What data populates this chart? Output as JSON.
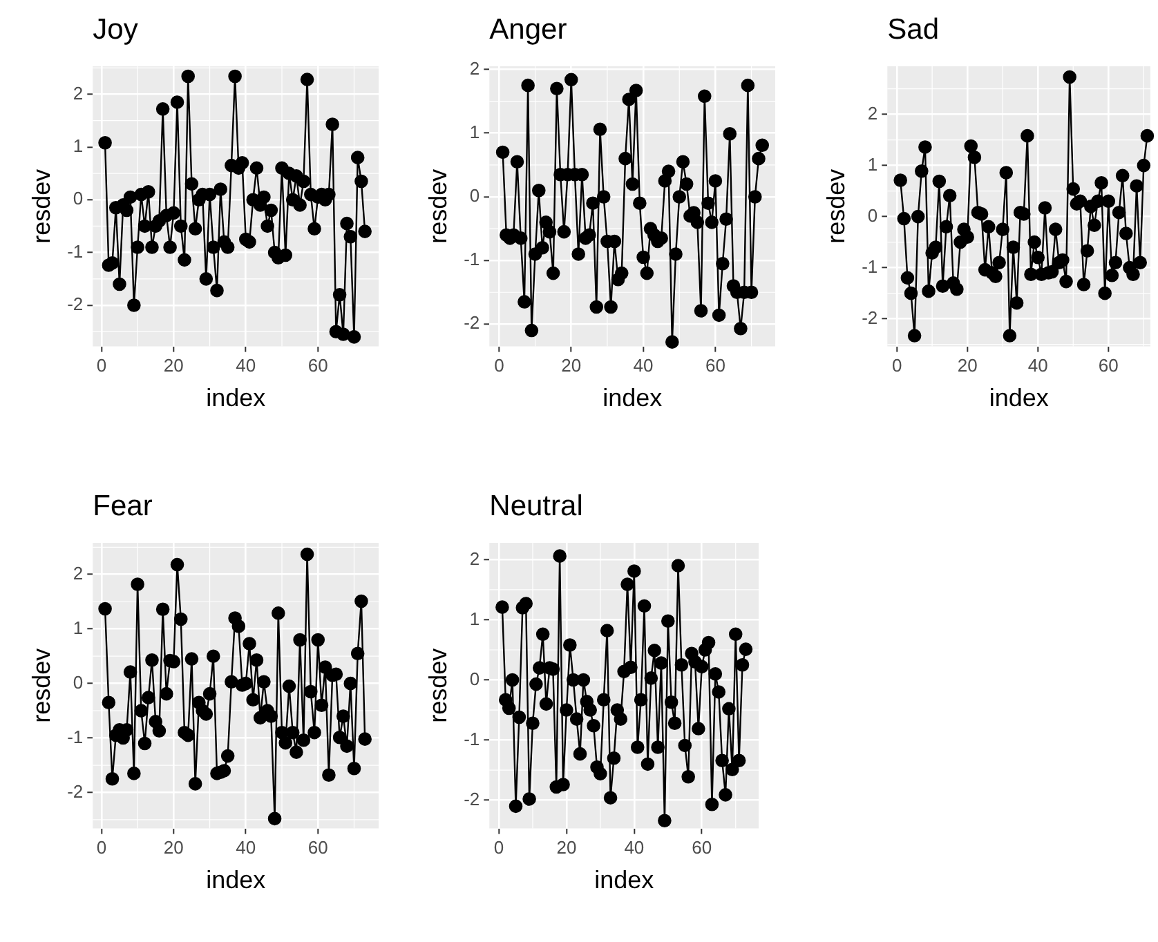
{
  "chart_data": [
    {
      "type": "line",
      "title": "Joy",
      "xlabel": "index",
      "ylabel": "resdev",
      "color": "#000000",
      "marker": "circle",
      "line_style": "solid",
      "grid": true,
      "xlim": [
        -2.4,
        76.8
      ],
      "ylim": [
        -2.78,
        2.53
      ],
      "xticks": [
        0,
        20,
        40,
        60
      ],
      "yticks": [
        -2,
        -1,
        0,
        1,
        2
      ],
      "x": [
        1,
        2,
        3,
        4,
        5,
        6,
        7,
        8,
        9,
        10,
        11,
        12,
        13,
        14,
        15,
        16,
        17,
        18,
        19,
        20,
        21,
        22,
        23,
        24,
        25,
        26,
        27,
        28,
        29,
        30,
        31,
        32,
        33,
        34,
        35,
        36,
        37,
        38,
        39,
        40,
        41,
        42,
        43,
        44,
        45,
        46,
        47,
        48,
        49,
        50,
        51,
        52,
        53,
        54,
        55,
        56,
        57,
        58,
        59,
        60,
        61,
        62,
        63,
        64,
        65,
        66,
        67,
        68,
        69,
        70,
        71,
        72,
        73
      ],
      "values": [
        1.08,
        -1.24,
        -1.2,
        -0.15,
        -1.6,
        -0.1,
        -0.2,
        0.05,
        -2.0,
        -0.9,
        0.1,
        -0.5,
        0.15,
        -0.9,
        -0.5,
        -0.4,
        1.72,
        -0.3,
        -0.9,
        -0.25,
        1.85,
        -0.5,
        -1.14,
        2.34,
        0.3,
        -0.55,
        0.0,
        0.1,
        -1.5,
        0.1,
        -0.9,
        -1.72,
        0.2,
        -0.8,
        -0.9,
        0.65,
        2.34,
        0.6,
        0.7,
        -0.75,
        -0.8,
        0.0,
        0.6,
        -0.1,
        0.05,
        -0.5,
        -0.2,
        -1.0,
        -1.1,
        0.6,
        -1.05,
        0.5,
        0.0,
        0.45,
        -0.1,
        0.35,
        2.28,
        0.1,
        -0.55,
        0.05,
        0.1,
        0.0,
        0.1,
        1.43,
        -2.5,
        -1.8,
        -2.55,
        -0.45,
        -0.7,
        -2.6,
        0.8,
        0.35,
        -0.6
      ]
    },
    {
      "type": "line",
      "title": "Anger",
      "xlabel": "index",
      "ylabel": "resdev",
      "color": "#000000",
      "marker": "circle",
      "line_style": "solid",
      "grid": true,
      "xlim": [
        -2.7,
        76.6
      ],
      "ylim": [
        -2.35,
        2.05
      ],
      "xticks": [
        0,
        20,
        40,
        60
      ],
      "yticks": [
        -2,
        -1,
        0,
        1,
        2
      ],
      "x": [
        1,
        2,
        3,
        4,
        5,
        6,
        7,
        8,
        9,
        10,
        11,
        12,
        13,
        14,
        15,
        16,
        17,
        18,
        19,
        20,
        21,
        22,
        23,
        24,
        25,
        26,
        27,
        28,
        29,
        30,
        31,
        32,
        33,
        34,
        35,
        36,
        37,
        38,
        39,
        40,
        41,
        42,
        43,
        44,
        45,
        46,
        47,
        48,
        49,
        50,
        51,
        52,
        53,
        54,
        55,
        56,
        57,
        58,
        59,
        60,
        61,
        62,
        63,
        64,
        65,
        66,
        67,
        68,
        69,
        70,
        71,
        72,
        73
      ],
      "values": [
        0.7,
        -0.6,
        -0.65,
        -0.6,
        0.55,
        -0.65,
        -1.65,
        1.75,
        -2.1,
        -0.9,
        0.1,
        -0.8,
        -0.4,
        -0.55,
        -1.2,
        1.7,
        0.35,
        -0.55,
        0.35,
        1.84,
        0.35,
        -0.9,
        0.35,
        -0.65,
        -0.6,
        -0.1,
        -1.73,
        1.06,
        0.0,
        -0.7,
        -1.73,
        -0.7,
        -1.3,
        -1.2,
        0.6,
        1.53,
        0.2,
        1.67,
        -0.1,
        -0.95,
        -1.2,
        -0.5,
        -0.6,
        -0.7,
        -0.65,
        0.25,
        0.4,
        -2.28,
        -0.9,
        0.0,
        0.55,
        0.2,
        -0.3,
        -0.25,
        -0.4,
        -1.79,
        1.58,
        -0.1,
        -0.4,
        0.25,
        -1.86,
        -1.05,
        -0.35,
        0.99,
        -1.4,
        -1.5,
        -2.07,
        -1.5,
        1.75,
        -1.5,
        0.0,
        0.6,
        0.81
      ]
    },
    {
      "type": "line",
      "title": "Sad",
      "xlabel": "index",
      "ylabel": "resdev",
      "color": "#000000",
      "marker": "circle",
      "line_style": "solid",
      "grid": true,
      "xlim": [
        -2.7,
        71.9
      ],
      "ylim": [
        -2.54,
        2.94
      ],
      "xticks": [
        0,
        20,
        40,
        60
      ],
      "yticks": [
        -2,
        -1,
        0,
        1,
        2
      ],
      "x": [
        1,
        2,
        3,
        4,
        5,
        6,
        7,
        8,
        9,
        10,
        11,
        12,
        13,
        14,
        15,
        16,
        17,
        18,
        19,
        20,
        21,
        22,
        23,
        24,
        25,
        26,
        27,
        28,
        29,
        30,
        31,
        32,
        33,
        34,
        35,
        36,
        37,
        38,
        39,
        40,
        41,
        42,
        43,
        44,
        45,
        46,
        47,
        48,
        49,
        50,
        51,
        52,
        53,
        54,
        55,
        56,
        57,
        58,
        59,
        60,
        61,
        62,
        63,
        64,
        65,
        66,
        67,
        68,
        69,
        70,
        71
      ],
      "values": [
        0.71,
        -0.04,
        -1.2,
        -1.5,
        -2.33,
        0.0,
        0.89,
        1.36,
        -1.46,
        -0.71,
        -0.6,
        0.69,
        -1.36,
        -0.2,
        0.41,
        -1.3,
        -1.42,
        -0.5,
        -0.25,
        -0.4,
        1.38,
        1.16,
        0.08,
        0.05,
        -1.04,
        -0.2,
        -1.1,
        -1.17,
        -0.9,
        -0.25,
        0.86,
        -2.33,
        -0.6,
        -1.69,
        0.08,
        0.05,
        1.58,
        -1.13,
        -0.5,
        -0.8,
        -1.13,
        0.17,
        -1.1,
        -1.08,
        -0.25,
        -0.9,
        -0.85,
        -1.27,
        2.73,
        0.54,
        0.25,
        0.3,
        -1.33,
        -0.67,
        0.2,
        -0.17,
        0.3,
        0.66,
        -1.5,
        0.3,
        -1.15,
        -0.9,
        0.08,
        0.8,
        -0.33,
        -1.0,
        -1.13,
        0.6,
        -0.9,
        1.0,
        1.58
      ]
    },
    {
      "type": "line",
      "title": "Fear",
      "xlabel": "index",
      "ylabel": "resdev",
      "color": "#000000",
      "marker": "circle",
      "line_style": "solid",
      "grid": true,
      "xlim": [
        -2.4,
        76.8
      ],
      "ylim": [
        -2.66,
        2.58
      ],
      "xticks": [
        0,
        20,
        40,
        60
      ],
      "yticks": [
        -2,
        -1,
        0,
        1,
        2
      ],
      "x": [
        1,
        2,
        3,
        4,
        5,
        6,
        7,
        8,
        9,
        10,
        11,
        12,
        13,
        14,
        15,
        16,
        17,
        18,
        19,
        20,
        21,
        22,
        23,
        24,
        25,
        26,
        27,
        28,
        29,
        30,
        31,
        32,
        33,
        34,
        35,
        36,
        37,
        38,
        39,
        40,
        41,
        42,
        43,
        44,
        45,
        46,
        47,
        48,
        49,
        50,
        51,
        52,
        53,
        54,
        55,
        56,
        57,
        58,
        59,
        60,
        61,
        62,
        63,
        64,
        65,
        66,
        67,
        68,
        69,
        70,
        71,
        72,
        73
      ],
      "values": [
        1.37,
        -0.35,
        -1.75,
        -0.95,
        -0.85,
        -1.0,
        -0.85,
        0.21,
        -1.65,
        1.82,
        -0.5,
        -1.1,
        -0.26,
        0.43,
        -0.7,
        -0.87,
        1.36,
        -0.19,
        0.42,
        0.4,
        2.18,
        1.18,
        -0.9,
        -0.95,
        0.45,
        -1.84,
        -0.35,
        -0.5,
        -0.56,
        -0.19,
        0.5,
        -1.65,
        -1.63,
        -1.6,
        -1.33,
        0.03,
        1.2,
        1.05,
        -0.03,
        0.0,
        0.73,
        -0.3,
        0.43,
        -0.63,
        0.03,
        -0.5,
        -0.6,
        -2.48,
        1.29,
        -0.9,
        -1.09,
        -0.05,
        -0.9,
        -1.26,
        0.8,
        -1.04,
        2.37,
        -0.15,
        -0.9,
        0.8,
        -0.4,
        0.3,
        -1.68,
        0.15,
        0.17,
        -0.99,
        -0.6,
        -1.15,
        0.0,
        -1.56,
        0.55,
        1.51,
        -1.02
      ]
    },
    {
      "type": "line",
      "title": "Neutral",
      "xlabel": "index",
      "ylabel": "resdev",
      "color": "#000000",
      "marker": "circle",
      "line_style": "solid",
      "grid": true,
      "xlim": [
        -2.8,
        76.8
      ],
      "ylim": [
        -2.47,
        2.28
      ],
      "xticks": [
        0,
        20,
        40,
        60
      ],
      "yticks": [
        -2,
        -1,
        0,
        1,
        2
      ],
      "x": [
        1,
        2,
        3,
        4,
        5,
        6,
        7,
        8,
        9,
        10,
        11,
        12,
        13,
        14,
        15,
        16,
        17,
        18,
        19,
        20,
        21,
        22,
        23,
        24,
        25,
        26,
        27,
        28,
        29,
        30,
        31,
        32,
        33,
        34,
        35,
        36,
        37,
        38,
        39,
        40,
        41,
        42,
        43,
        44,
        45,
        46,
        47,
        48,
        49,
        50,
        51,
        52,
        53,
        54,
        55,
        56,
        57,
        58,
        59,
        60,
        61,
        62,
        63,
        64,
        65,
        66,
        67,
        68,
        69,
        70,
        71,
        72,
        73
      ],
      "values": [
        1.21,
        -0.33,
        -0.47,
        0.0,
        -2.1,
        -0.62,
        1.2,
        1.27,
        -1.98,
        -0.72,
        -0.07,
        0.2,
        0.76,
        -0.4,
        0.2,
        0.18,
        -1.78,
        2.06,
        -1.74,
        -0.5,
        0.58,
        0.0,
        -0.65,
        -1.23,
        0.0,
        -0.36,
        -0.5,
        -0.76,
        -1.45,
        -1.56,
        -0.33,
        0.82,
        -1.96,
        -1.3,
        -0.5,
        -0.65,
        0.14,
        1.59,
        0.21,
        1.81,
        -1.12,
        -0.33,
        1.23,
        -1.4,
        0.03,
        0.49,
        -1.12,
        0.28,
        -2.34,
        0.98,
        -0.37,
        -0.72,
        1.9,
        0.25,
        -1.09,
        -1.61,
        0.44,
        0.3,
        -0.81,
        0.22,
        0.5,
        0.62,
        -2.07,
        0.1,
        -0.2,
        -1.34,
        -1.91,
        -0.48,
        -1.49,
        0.76,
        -1.34,
        0.25,
        0.51
      ]
    }
  ]
}
